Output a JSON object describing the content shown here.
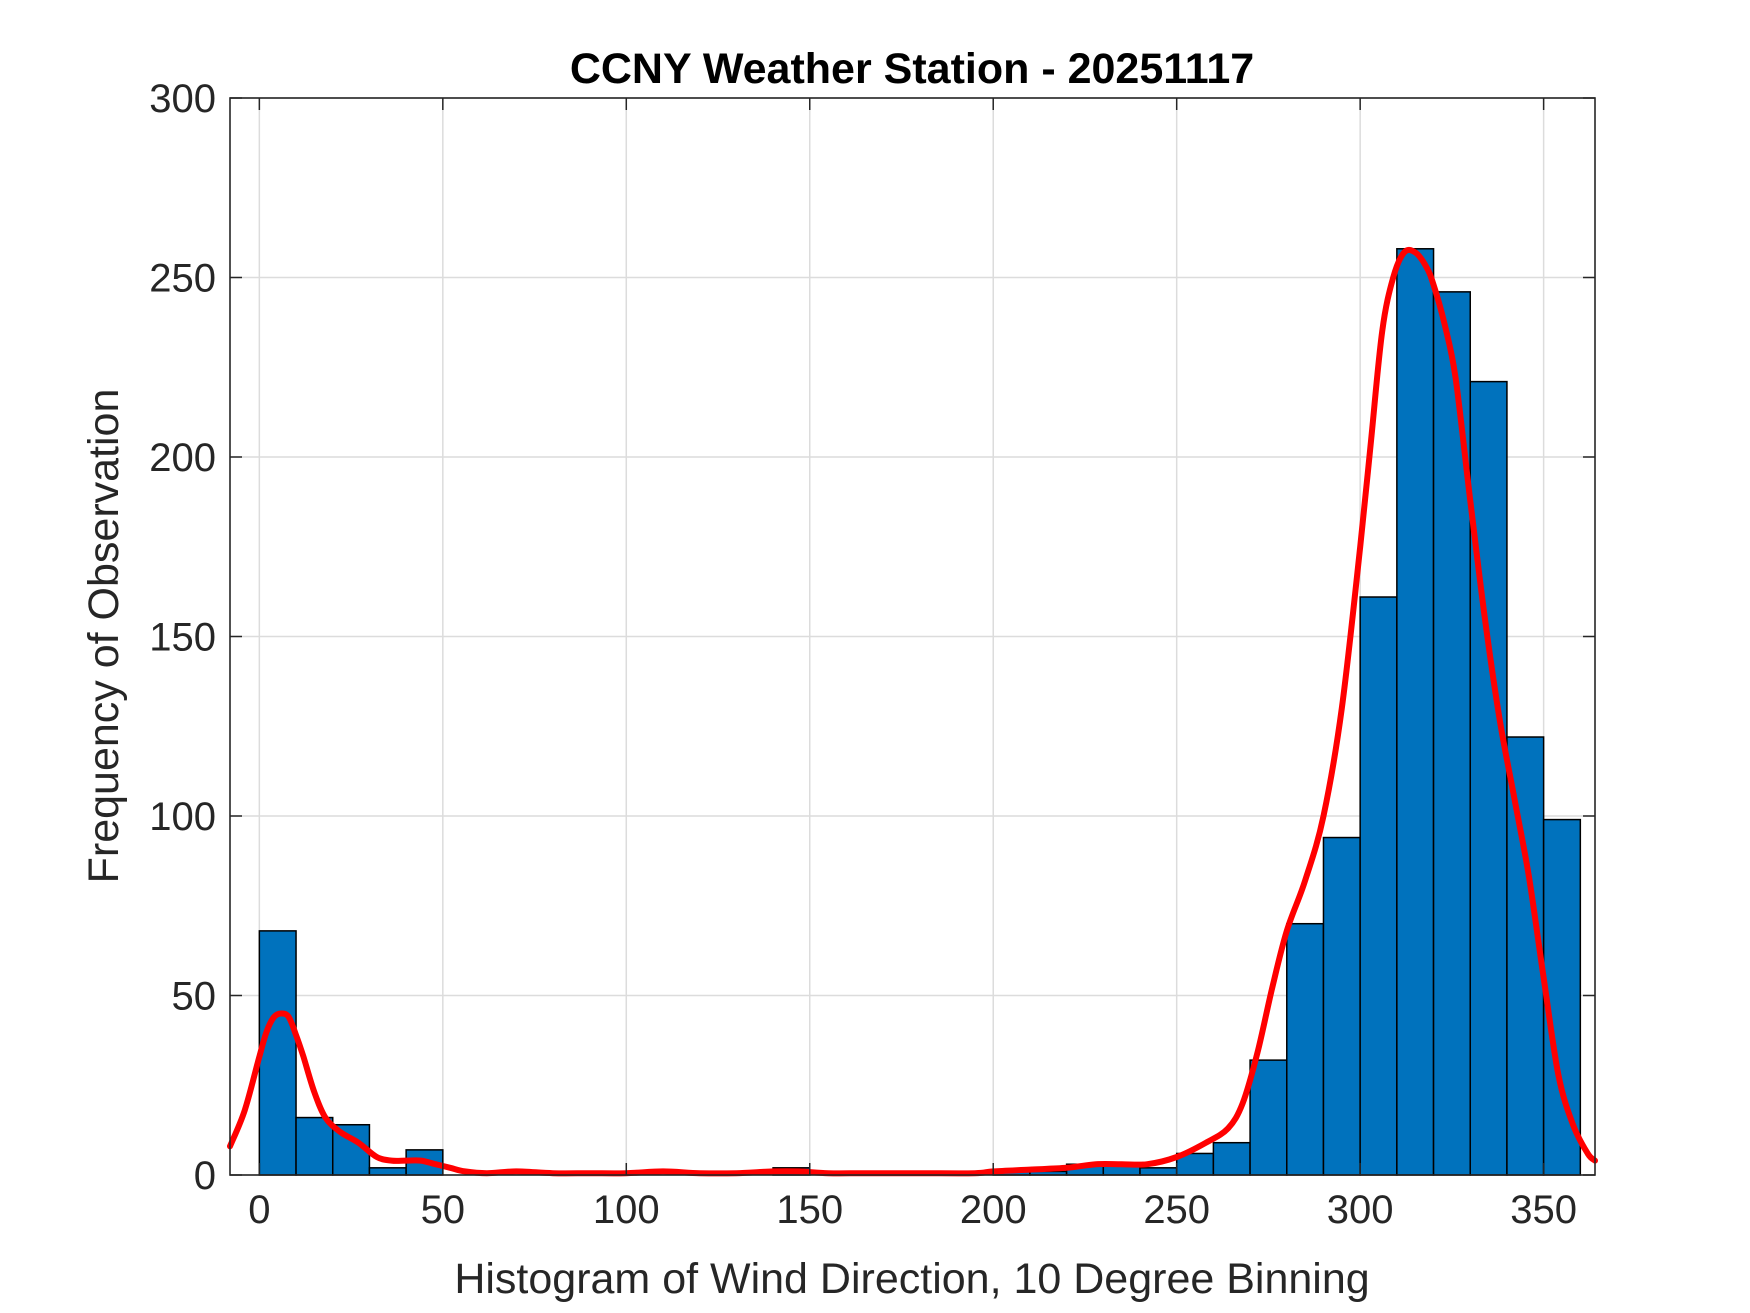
{
  "chart_data": {
    "type": "bar",
    "title": "CCNY Weather Station - 20251117",
    "xlabel": "Histogram of Wind Direction, 10 Degree Binning",
    "ylabel": "Frequency of Observation",
    "xlim": [
      -8,
      364
    ],
    "ylim": [
      0,
      300
    ],
    "xticks": [
      0,
      50,
      100,
      150,
      200,
      250,
      300,
      350
    ],
    "yticks": [
      0,
      50,
      100,
      150,
      200,
      250,
      300
    ],
    "grid": true,
    "bin_width": 10,
    "bar_color": "#0072BD",
    "bar_edge_color": "#000000",
    "bins": [
      {
        "start": 0,
        "count": 68
      },
      {
        "start": 10,
        "count": 16
      },
      {
        "start": 20,
        "count": 14
      },
      {
        "start": 30,
        "count": 2
      },
      {
        "start": 40,
        "count": 7
      },
      {
        "start": 50,
        "count": 0
      },
      {
        "start": 60,
        "count": 0
      },
      {
        "start": 70,
        "count": 0
      },
      {
        "start": 80,
        "count": 0
      },
      {
        "start": 90,
        "count": 0
      },
      {
        "start": 100,
        "count": 0
      },
      {
        "start": 110,
        "count": 0
      },
      {
        "start": 120,
        "count": 0
      },
      {
        "start": 130,
        "count": 0
      },
      {
        "start": 140,
        "count": 2
      },
      {
        "start": 150,
        "count": 0
      },
      {
        "start": 160,
        "count": 0
      },
      {
        "start": 170,
        "count": 0
      },
      {
        "start": 180,
        "count": 0
      },
      {
        "start": 190,
        "count": 0
      },
      {
        "start": 200,
        "count": 1
      },
      {
        "start": 210,
        "count": 1
      },
      {
        "start": 220,
        "count": 3
      },
      {
        "start": 230,
        "count": 3
      },
      {
        "start": 240,
        "count": 2
      },
      {
        "start": 250,
        "count": 6
      },
      {
        "start": 260,
        "count": 9
      },
      {
        "start": 270,
        "count": 32
      },
      {
        "start": 280,
        "count": 70
      },
      {
        "start": 290,
        "count": 94
      },
      {
        "start": 300,
        "count": 161
      },
      {
        "start": 310,
        "count": 258
      },
      {
        "start": 320,
        "count": 246
      },
      {
        "start": 330,
        "count": 221
      },
      {
        "start": 340,
        "count": 122
      },
      {
        "start": 350,
        "count": 99
      }
    ],
    "fit_curve": {
      "color": "#FF0000",
      "x": [
        -8,
        -4,
        0,
        2,
        4,
        6,
        8,
        10,
        12,
        15,
        18,
        22,
        27,
        32,
        36,
        40,
        44,
        48,
        52,
        56,
        62,
        70,
        80,
        90,
        100,
        110,
        120,
        130,
        140,
        147,
        155,
        165,
        180,
        195,
        200,
        210,
        220,
        228,
        235,
        242,
        250,
        258,
        264,
        268,
        272,
        276,
        280,
        285,
        290,
        295,
        300,
        303,
        306,
        309,
        312,
        315,
        318,
        320,
        323,
        326,
        330,
        334,
        338,
        342,
        346,
        350,
        354,
        358,
        362,
        364
      ],
      "y": [
        8,
        18,
        33,
        40,
        44,
        45,
        44,
        39,
        33,
        23,
        16,
        12,
        9,
        5,
        4,
        4,
        4,
        3,
        2,
        1,
        0.5,
        1,
        0.5,
        0.5,
        0.5,
        1,
        0.5,
        0.5,
        1,
        1,
        0.5,
        0.5,
        0.5,
        0.5,
        1,
        1.5,
        2,
        3,
        3,
        3,
        5,
        9,
        13,
        20,
        34,
        52,
        68,
        82,
        100,
        130,
        175,
        205,
        235,
        250,
        257,
        257,
        253,
        248,
        237,
        222,
        188,
        155,
        127,
        105,
        83,
        55,
        28,
        14,
        6,
        4
      ]
    }
  }
}
